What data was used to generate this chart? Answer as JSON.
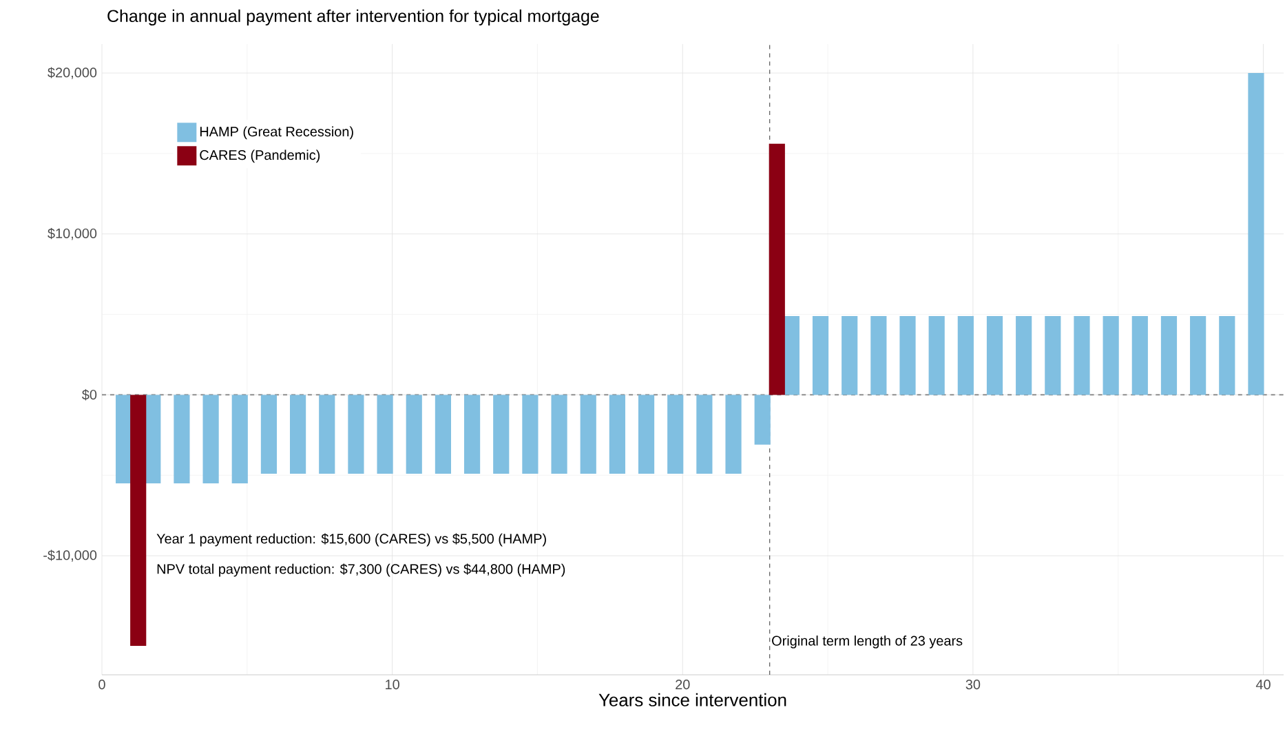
{
  "chart_data": {
    "type": "bar",
    "title": "Change in annual payment after intervention for typical mortgage",
    "xlabel": "Years since intervention",
    "series": [
      {
        "name": "HAMP (Great Recession)",
        "color": "#80bfe1",
        "x": [
          0.75,
          1.75,
          2.75,
          3.75,
          4.75,
          5.75,
          6.75,
          7.75,
          8.75,
          9.75,
          10.75,
          11.75,
          12.75,
          13.75,
          14.75,
          15.75,
          16.75,
          17.75,
          18.75,
          19.75,
          20.75,
          21.75,
          22.75,
          23.75,
          24.75,
          25.75,
          26.75,
          27.75,
          28.75,
          29.75,
          30.75,
          31.75,
          32.75,
          33.75,
          34.75,
          35.75,
          36.75,
          37.75,
          38.75,
          39.75
        ],
        "values": [
          -5500,
          -5500,
          -5500,
          -5500,
          -5500,
          -4900,
          -4900,
          -4900,
          -4900,
          -4900,
          -4900,
          -4900,
          -4900,
          -4900,
          -4900,
          -4900,
          -4900,
          -4900,
          -4900,
          -4900,
          -4900,
          -4900,
          -3100,
          4900,
          4900,
          4900,
          4900,
          4900,
          4900,
          4900,
          4900,
          4900,
          4900,
          4900,
          4900,
          4900,
          4900,
          4900,
          4900,
          20000
        ]
      },
      {
        "name": "CARES (Pandemic)",
        "color": "#8b0013",
        "x": [
          1.25,
          23.25
        ],
        "values": [
          -15600,
          15600
        ]
      }
    ],
    "xlim": [
      0,
      40.7
    ],
    "xticks": [
      0,
      10,
      20,
      30,
      40
    ],
    "ylim": [
      -17400,
      21800
    ],
    "yticks": [
      {
        "value": -10000,
        "label": "-$10,000"
      },
      {
        "value": 0,
        "label": "$0"
      },
      {
        "value": 10000,
        "label": "$10,000"
      },
      {
        "value": 20000,
        "label": "$20,000"
      }
    ],
    "grid": true,
    "legend": "top left",
    "ref_lines": [
      {
        "axis": "y",
        "value": 0,
        "color": "#7f7f7f",
        "line_style": "dashed"
      },
      {
        "axis": "x",
        "value": 23,
        "label": "Original term length of 23 years",
        "color": "#000000",
        "line_style": "dashed"
      }
    ],
    "annotations": [
      "Year 1 payment reduction: $15,600 (CARES) vs $5,500 (HAMP)",
      "NPV total payment reduction: $7,300 (CARES) vs  $44,800 (HAMP)"
    ]
  }
}
